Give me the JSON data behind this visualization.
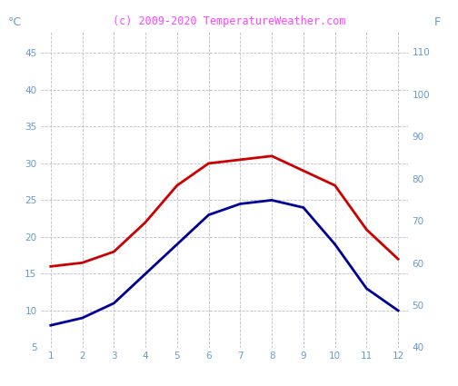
{
  "title": "(c) 2009-2020 TemperatureWeather.com",
  "title_color": "#ff44ff",
  "title_fontsize": 8.5,
  "ylabel_left": "°C",
  "ylabel_right": "F",
  "ylabel_color": "#6699cc",
  "x": [
    1,
    2,
    3,
    4,
    5,
    6,
    7,
    8,
    9,
    10,
    11,
    12
  ],
  "red_line": [
    16,
    16.5,
    18,
    22,
    27,
    30,
    30.5,
    31,
    29,
    27,
    21,
    17
  ],
  "blue_line": [
    8,
    9,
    11,
    15,
    19,
    23,
    24.5,
    25,
    24,
    19,
    13,
    10
  ],
  "red_color": "#cc0000",
  "blue_color": "#000099",
  "ylim_left": [
    5,
    48
  ],
  "ylim_right": [
    40,
    115
  ],
  "yticks_left": [
    5,
    10,
    15,
    20,
    25,
    30,
    35,
    40,
    45
  ],
  "yticks_right": [
    40,
    50,
    60,
    70,
    80,
    90,
    100,
    110
  ],
  "xticks": [
    1,
    2,
    3,
    4,
    5,
    6,
    7,
    8,
    9,
    10,
    11,
    12
  ],
  "background_color": "#ffffff",
  "grid_color": "#bbbbcc",
  "line_width": 2.0,
  "tick_color": "#6699cc",
  "tick_fontsize": 7.5,
  "figsize": [
    5.04,
    4.25
  ],
  "dpi": 100
}
